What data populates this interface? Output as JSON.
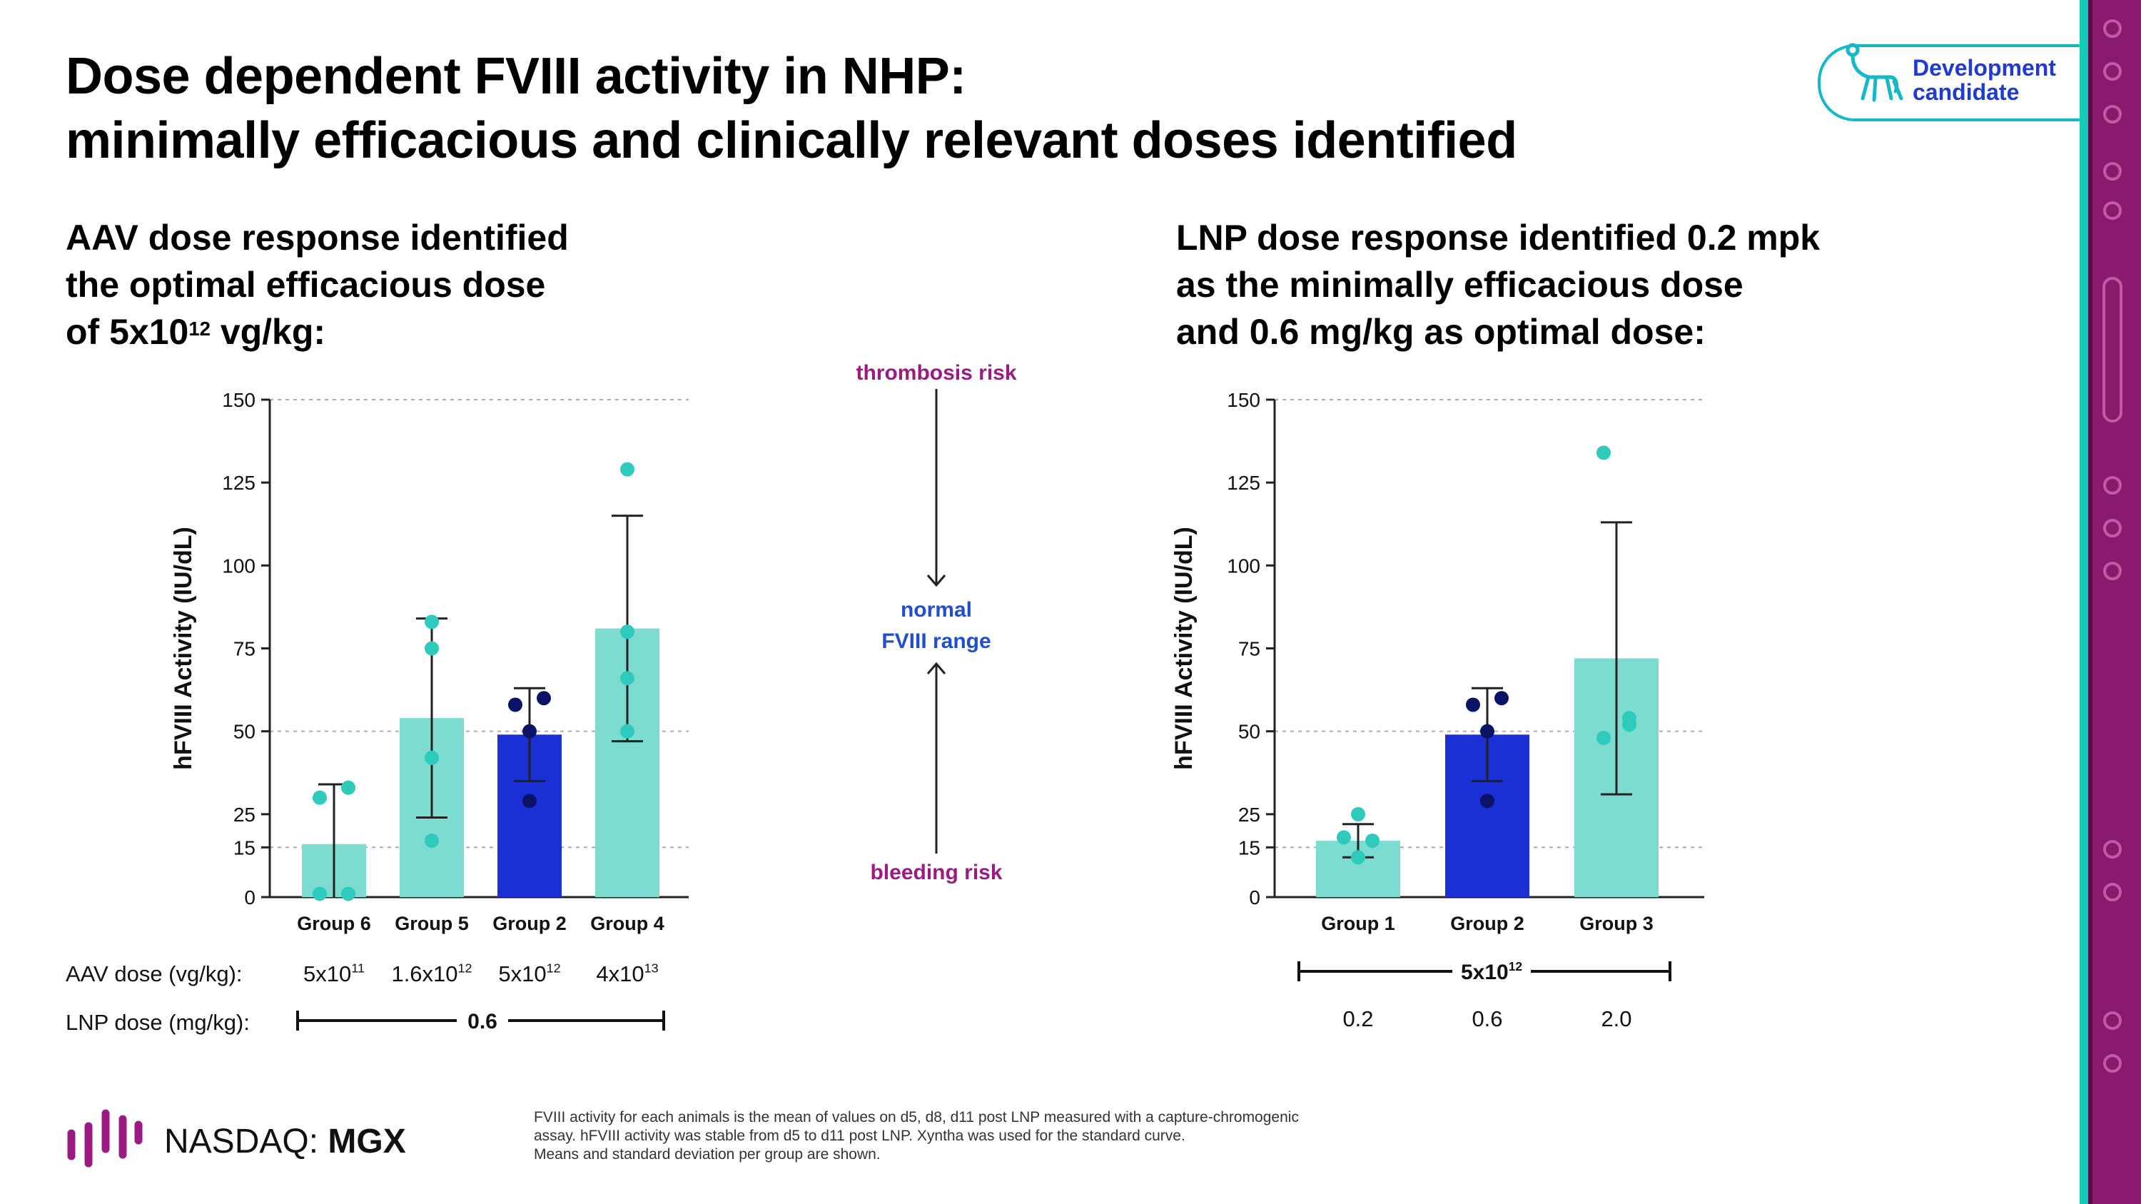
{
  "title_line1": "Dose dependent FVIII activity in NHP:",
  "title_line2": "minimally efficacious and clinically relevant doses identified",
  "badge": {
    "line1": "Development",
    "line2": "candidate"
  },
  "left_subtitle": {
    "line1": "AAV dose response identified",
    "line2": "the optimal efficacious dose",
    "line3_pre": "of 5x10",
    "line3_sup": "12",
    "line3_post": " vg/kg:"
  },
  "right_subtitle": {
    "line1": "LNP dose response identified 0.2 mpk",
    "line2": "as the minimally efficacious dose",
    "line3": "and 0.6 mg/kg as optimal dose:"
  },
  "middle": {
    "top": "thrombosis risk",
    "normal1": "normal",
    "normal2": "FVIII range",
    "bottom": "bleeding risk"
  },
  "footnote": {
    "line1": "FVIII activity for each animals is the mean of values on d5, d8, d11 post LNP measured with a capture-chromogenic",
    "line2": "assay. hFVIII activity was stable from d5 to d11 post LNP. Xyntha was used for the standard curve.",
    "line3": "Means and standard deviation per group are shown."
  },
  "brand": {
    "prefix": "NASDAQ: ",
    "ticker": "MGX"
  },
  "colors": {
    "teal": "#7ddcd0",
    "dot_teal": "#2ecabb",
    "blue": "#1a2fd4",
    "dark_blue": "#0b1366",
    "magenta": "#9c1a84",
    "label_blue": "#1e4fd0"
  },
  "chart_data": [
    {
      "type": "bar",
      "ylabel": "hFVIII Activity (IU/dL)",
      "ylim": [
        0,
        150
      ],
      "yticks": [
        "0",
        "15",
        "25",
        "50",
        "75",
        "100",
        "125",
        "150"
      ],
      "ytick_values": [
        0,
        15,
        25,
        50,
        75,
        100,
        125,
        150
      ],
      "gridlines": [
        15,
        50,
        150
      ],
      "categories": [
        "Group 6",
        "Group 5",
        "Group 2",
        "Group 4"
      ],
      "values": [
        16,
        54,
        49,
        81
      ],
      "sd": [
        18,
        30,
        14,
        34
      ],
      "bar_colors": [
        "teal",
        "teal",
        "blue",
        "teal"
      ],
      "points": [
        [
          30,
          33,
          1,
          1
        ],
        [
          83,
          75,
          42,
          17
        ],
        [
          58,
          60,
          50,
          29
        ],
        [
          129,
          80,
          66,
          50
        ]
      ],
      "point_colors": [
        "dot_teal",
        "dot_teal",
        "dark_blue",
        "dot_teal"
      ],
      "row1_label": "AAV dose (vg/kg):",
      "row1_values": [
        {
          "base": "5x10",
          "sup": "11"
        },
        {
          "base": "1.6x10",
          "sup": "12"
        },
        {
          "base": "5x10",
          "sup": "12"
        },
        {
          "base": "4x10",
          "sup": "13"
        }
      ],
      "row2_label": "LNP dose (mg/kg):",
      "row2_value": "0.6"
    },
    {
      "type": "bar",
      "ylabel": "hFVIII Activity (IU/dL)",
      "ylim": [
        0,
        150
      ],
      "yticks": [
        "0",
        "15",
        "25",
        "50",
        "75",
        "100",
        "125",
        "150"
      ],
      "ytick_values": [
        0,
        15,
        25,
        50,
        75,
        100,
        125,
        150
      ],
      "gridlines": [
        15,
        50,
        150
      ],
      "categories": [
        "Group 1",
        "Group 2",
        "Group 3"
      ],
      "values": [
        17,
        49,
        72
      ],
      "sd": [
        5,
        14,
        41
      ],
      "bar_colors": [
        "teal",
        "blue",
        "teal"
      ],
      "points": [
        [
          25,
          18,
          17,
          12
        ],
        [
          58,
          60,
          50,
          29
        ],
        [
          134,
          54,
          52,
          48
        ]
      ],
      "point_colors": [
        "dot_teal",
        "dark_blue",
        "dot_teal"
      ],
      "bracket_label": {
        "base": "5x10",
        "sup": "12"
      },
      "row_values": [
        "0.2",
        "0.6",
        "2.0"
      ]
    }
  ]
}
